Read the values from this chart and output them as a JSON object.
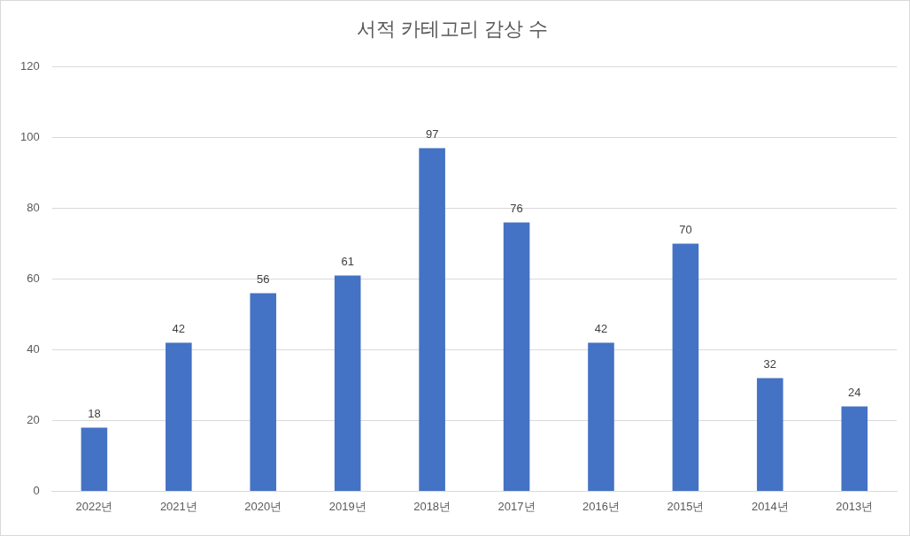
{
  "chart_data": {
    "type": "bar",
    "title": "서적 카테고리 감상 수",
    "categories": [
      "2022년",
      "2021년",
      "2020년",
      "2019년",
      "2018년",
      "2017년",
      "2016년",
      "2015년",
      "2014년",
      "2013년"
    ],
    "values": [
      18,
      42,
      56,
      61,
      97,
      76,
      42,
      70,
      32,
      24
    ],
    "color": "#4472c4",
    "ylim": [
      0,
      120
    ],
    "yticks": [
      0,
      20,
      40,
      60,
      80,
      100,
      120
    ],
    "grid": "y",
    "data_labels": true
  }
}
